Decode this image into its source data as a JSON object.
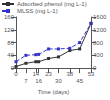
{
  "chart_data": {
    "type": "line",
    "x": [
      0,
      7,
      14,
      16,
      23,
      30,
      38,
      45,
      53
    ],
    "xlabel": "Time (days)",
    "xlim": [
      0,
      53
    ],
    "xticks": [
      0,
      7,
      14,
      16,
      23,
      30,
      38,
      45,
      53
    ],
    "ylim": [
      0,
      160
    ],
    "yticks": [
      0,
      40,
      80,
      120,
      160
    ],
    "y2lim": [
      0,
      1600
    ],
    "y2ticks": [
      0,
      400,
      800,
      1200,
      1600
    ],
    "series": [
      {
        "name": "Adsorbed phenol (mg L-1)",
        "color": "#333333",
        "line_style": "solid",
        "marker": "square",
        "values": [
          5,
          15,
          20,
          20,
          30,
          35,
          55,
          60,
          140
        ]
      },
      {
        "name": "MLSS (mg L-1)",
        "color": "#3333cc",
        "line_style": "dashed",
        "marker": "square",
        "axis": "y2",
        "values": [
          200,
          400,
          420,
          430,
          600,
          600,
          620,
          800,
          1400
        ]
      }
    ],
    "legend": "upper left",
    "grid": false
  }
}
